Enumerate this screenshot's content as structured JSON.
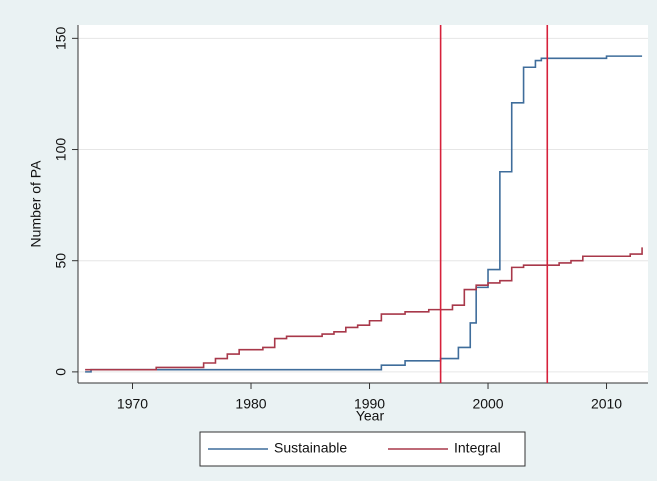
{
  "chart_data": {
    "type": "line",
    "step": true,
    "x_label": "Year",
    "y_label": "Number of PA",
    "xlim": [
      1965.4,
      2013.5
    ],
    "xticks": [
      1970,
      1980,
      1990,
      2000,
      2010
    ],
    "ylim": [
      -5,
      156
    ],
    "yticks": [
      0,
      50,
      100,
      150
    ],
    "grid": true,
    "vlines": {
      "color": "#d6213b",
      "x": [
        1996,
        2005
      ]
    },
    "legend": "bottom",
    "series": [
      {
        "name": "Sustainable",
        "color": "#3f6d9b",
        "x": [
          1966,
          1966.5,
          1991,
          1993,
          1996,
          1997.5,
          1998.5,
          1999,
          2000,
          2001,
          2002,
          2003,
          2004,
          2004.5,
          2010,
          2013
        ],
        "values": [
          0,
          1,
          3,
          5,
          6,
          11,
          22,
          38,
          46,
          90,
          121,
          137,
          140,
          141,
          142,
          142
        ]
      },
      {
        "name": "Integral",
        "color": "#a8384a",
        "x": [
          1966,
          1972,
          1976,
          1977,
          1978,
          1979,
          1981,
          1982,
          1983,
          1986,
          1987,
          1988,
          1989,
          1990,
          1991,
          1993,
          1995,
          1997,
          1998,
          1999,
          2000,
          2001,
          2002,
          2003,
          2006,
          2007,
          2008,
          2012,
          2013
        ],
        "values": [
          1,
          2,
          4,
          6,
          8,
          10,
          11,
          15,
          16,
          17,
          18,
          20,
          21,
          23,
          26,
          27,
          28,
          30,
          37,
          39,
          40,
          41,
          47,
          48,
          49,
          50,
          52,
          53,
          56
        ]
      }
    ]
  }
}
